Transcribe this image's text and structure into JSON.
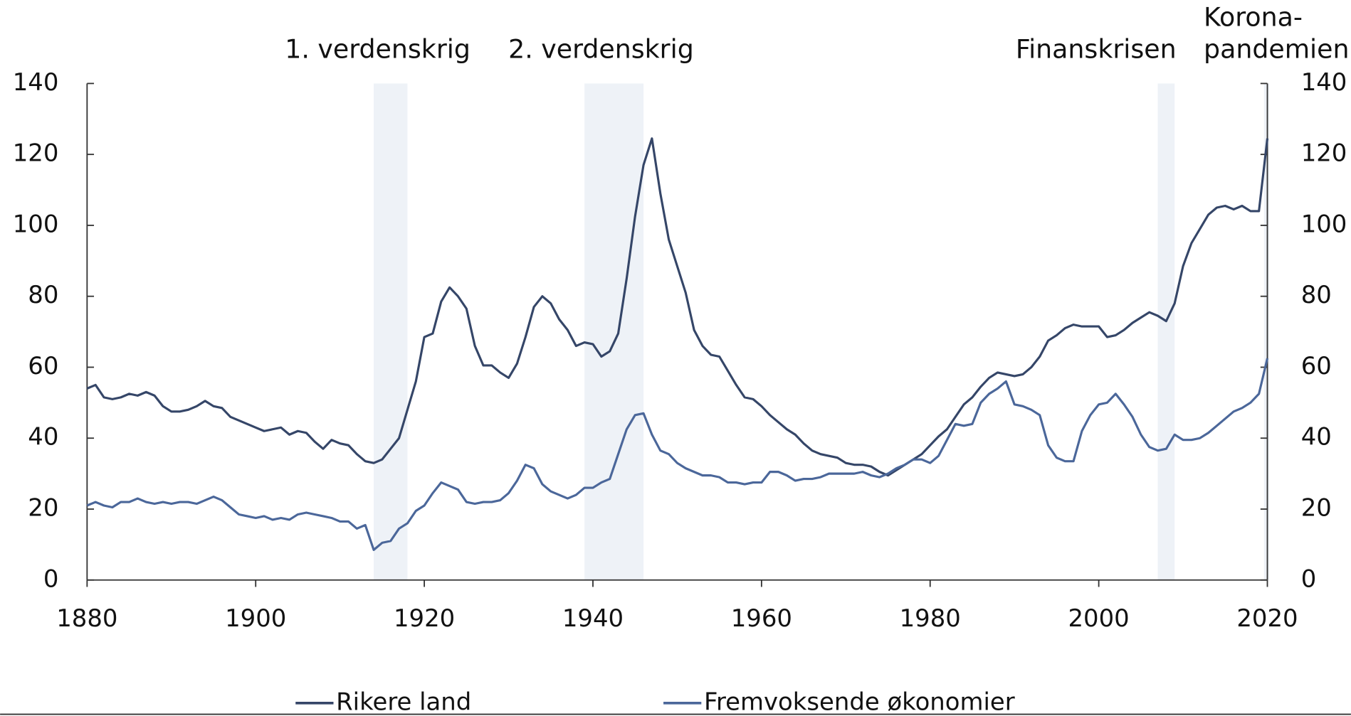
{
  "chart_data": {
    "type": "line",
    "x": [
      1880,
      1881,
      1882,
      1883,
      1884,
      1885,
      1886,
      1887,
      1888,
      1889,
      1890,
      1891,
      1892,
      1893,
      1894,
      1895,
      1896,
      1897,
      1898,
      1899,
      1900,
      1901,
      1902,
      1903,
      1904,
      1905,
      1906,
      1907,
      1908,
      1909,
      1910,
      1911,
      1912,
      1913,
      1914,
      1915,
      1916,
      1917,
      1918,
      1919,
      1920,
      1921,
      1922,
      1923,
      1924,
      1925,
      1926,
      1927,
      1928,
      1929,
      1930,
      1931,
      1932,
      1933,
      1934,
      1935,
      1936,
      1937,
      1938,
      1939,
      1940,
      1941,
      1942,
      1943,
      1944,
      1945,
      1946,
      1947,
      1948,
      1949,
      1950,
      1951,
      1952,
      1953,
      1954,
      1955,
      1956,
      1957,
      1958,
      1959,
      1960,
      1961,
      1962,
      1963,
      1964,
      1965,
      1966,
      1967,
      1968,
      1969,
      1970,
      1971,
      1972,
      1973,
      1974,
      1975,
      1976,
      1977,
      1978,
      1979,
      1980,
      1981,
      1982,
      1983,
      1984,
      1985,
      1986,
      1987,
      1988,
      1989,
      1990,
      1991,
      1992,
      1993,
      1994,
      1995,
      1996,
      1997,
      1998,
      1999,
      2000,
      2001,
      2002,
      2003,
      2004,
      2005,
      2006,
      2007,
      2008,
      2009,
      2010,
      2011,
      2012,
      2013,
      2014,
      2015,
      2016,
      2017,
      2018,
      2019,
      2020
    ],
    "series": [
      {
        "name": "Rikere land",
        "color": "#354668",
        "values": [
          54,
          55,
          51.5,
          51,
          51.5,
          52.5,
          52,
          53,
          52,
          49,
          47.5,
          47.5,
          48,
          49,
          50.5,
          49,
          48.5,
          46,
          45,
          44,
          43,
          42,
          42.5,
          43,
          41,
          42,
          41.5,
          39,
          37,
          39.5,
          38.5,
          38,
          35.5,
          33.5,
          33,
          34,
          37,
          40,
          48,
          56,
          68.5,
          69.5,
          78.5,
          82.5,
          80,
          76.5,
          66,
          60.5,
          60.5,
          58.5,
          57,
          61,
          68.5,
          77,
          80,
          78,
          73.5,
          70.5,
          66,
          67,
          66.5,
          63,
          64.5,
          69.5,
          85,
          102.5,
          117,
          124.5,
          109,
          96,
          88.5,
          81,
          70.5,
          66,
          63.5,
          63,
          59,
          55,
          51.5,
          51,
          49,
          46.5,
          44.5,
          42.5,
          41,
          38.5,
          36.5,
          35.5,
          35,
          34.5,
          33,
          32.5,
          32.5,
          32,
          30.5,
          29.5,
          31,
          32.5,
          34,
          35.5,
          38,
          40.5,
          42.5,
          46,
          49.5,
          51.5,
          54.5,
          57,
          58.5,
          58,
          57.5,
          58,
          60,
          63,
          67.5,
          69,
          71,
          72,
          71.5,
          71.5,
          71.5,
          68.5,
          69,
          70.5,
          72.5,
          74,
          75.5,
          74.5,
          73,
          78,
          88.5,
          95,
          99,
          103,
          105,
          105.5,
          104.5,
          105.5,
          104,
          104,
          124.5
        ]
      },
      {
        "name": "Fremvoksende økonomier",
        "color": "#4b679a",
        "values": [
          21,
          22,
          21,
          20.5,
          22,
          22,
          23,
          22,
          21.5,
          22,
          21.5,
          22,
          22,
          21.5,
          22.5,
          23.5,
          22.5,
          20.5,
          18.5,
          18,
          17.5,
          18,
          17,
          17.5,
          17,
          18.5,
          19,
          18.5,
          18,
          17.5,
          16.5,
          16.5,
          14.5,
          15.5,
          8.5,
          10.5,
          11,
          14.5,
          16,
          19.5,
          21,
          24.5,
          27.5,
          26.5,
          25.5,
          22,
          21.5,
          22,
          22,
          22.5,
          24.5,
          28,
          32.5,
          31.5,
          27,
          25,
          24,
          23,
          24,
          26,
          26,
          27.5,
          28.5,
          35.5,
          42.5,
          46.5,
          47,
          41,
          36.5,
          35.5,
          33,
          31.5,
          30.5,
          29.5,
          29.5,
          29,
          27.5,
          27.5,
          27,
          27.5,
          27.5,
          30.5,
          30.5,
          29.5,
          28,
          28.5,
          28.5,
          29,
          30,
          30,
          30,
          30,
          30.5,
          29.5,
          29,
          30,
          31.5,
          32.5,
          34,
          34,
          33,
          35,
          39.5,
          44,
          43.5,
          44,
          50,
          52.5,
          54,
          56,
          49.5,
          49,
          48,
          46.5,
          38,
          34.5,
          33.5,
          33.5,
          42,
          46.5,
          49.5,
          50,
          52.5,
          49.5,
          46,
          41,
          37.5,
          36.5,
          37,
          41,
          39.5,
          39.5,
          40,
          41.5,
          43.5,
          45.5,
          47.5,
          48.5,
          50,
          52.5,
          62.5
        ]
      }
    ],
    "periods": [
      {
        "label": [
          "1. verdenskrig"
        ],
        "start": 1914,
        "end": 1918
      },
      {
        "label": [
          "2. verdenskrig"
        ],
        "start": 1939,
        "end": 1946
      },
      {
        "label": [
          "Finanskrisen"
        ],
        "start": 2007,
        "end": 2009
      },
      {
        "label": [
          "Korona-",
          "pandemien"
        ],
        "start": 2019.6,
        "end": 2020.2
      }
    ],
    "period_color": "#eef2f7",
    "xlim": [
      1880,
      2020
    ],
    "xticks": [
      1880,
      1900,
      1920,
      1940,
      1960,
      1980,
      2000,
      2020
    ],
    "ylim": [
      0,
      140
    ],
    "yticks": [
      0,
      20,
      40,
      60,
      80,
      100,
      120,
      140
    ],
    "y2lim": [
      0,
      140
    ],
    "y2ticks": [
      0,
      20,
      40,
      60,
      80,
      100,
      120,
      140
    ],
    "grid": false,
    "legend": "bottom"
  }
}
